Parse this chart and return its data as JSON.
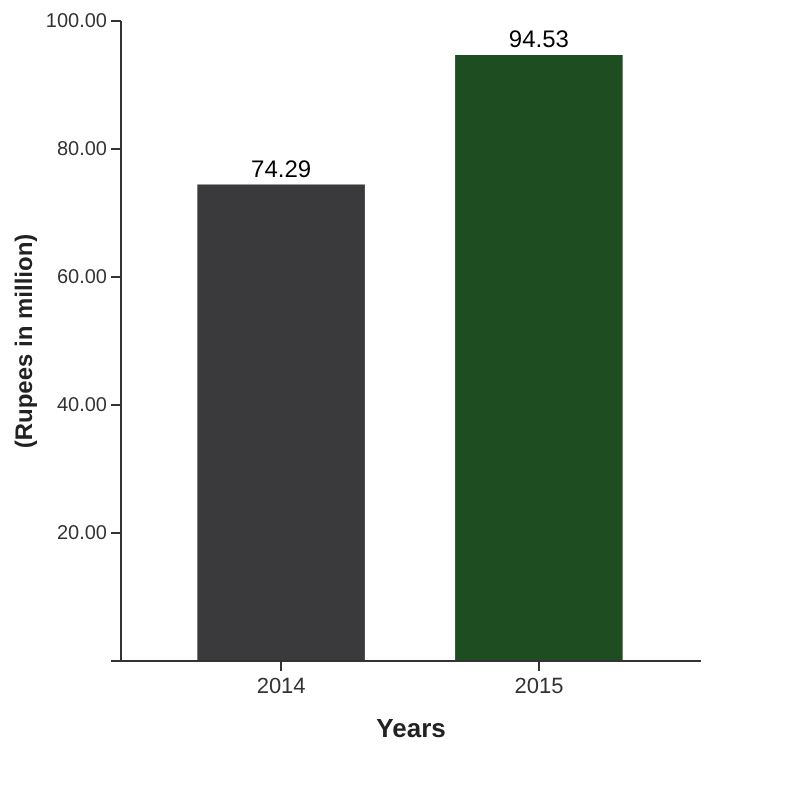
{
  "chart_data": {
    "type": "bar",
    "xlabel": "Years",
    "ylabel": "(Rupees in million)",
    "categories": [
      "2014",
      "2015"
    ],
    "values": [
      74.29,
      94.53
    ],
    "colors": [
      "#3a3a3c",
      "#1f4d22"
    ],
    "ylim": [
      0,
      100
    ],
    "yticks": [
      {
        "value": 0,
        "label": null
      },
      {
        "value": 20,
        "label": "20.00"
      },
      {
        "value": 40,
        "label": "40.00"
      },
      {
        "value": 60,
        "label": "60.00"
      },
      {
        "value": 80,
        "label": "80.00"
      },
      {
        "value": 100,
        "label": "100.00"
      }
    ],
    "data_labels": true,
    "grid": false
  }
}
